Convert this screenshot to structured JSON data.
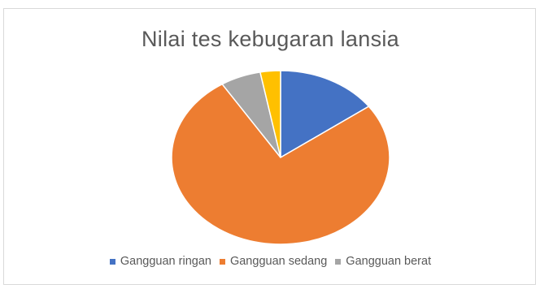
{
  "chart_data": {
    "type": "pie",
    "title": "Nilai tes kebugaran lansia",
    "categories": [
      "Gangguan ringan",
      "Gangguan sedang",
      "Gangguan berat",
      ""
    ],
    "values": [
      15,
      76,
      6,
      3
    ],
    "colors": [
      "#4472C4",
      "#ED7D31",
      "#A5A5A5",
      "#FFC000"
    ],
    "legend": {
      "position": "bottom",
      "entries": [
        "Gangguan ringan",
        "Gangguan sedang",
        "Gangguan berat"
      ]
    }
  }
}
